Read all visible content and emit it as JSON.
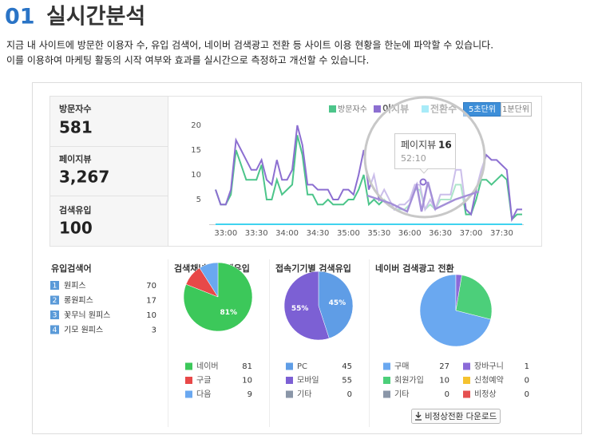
{
  "header": {
    "number": "01",
    "title": "실시간분석",
    "description": [
      "지금 내 사이트에 방문한 이용자 수, 유입 검색어, 네이버 검색광고 전환 등 사이트 이용 현황을 한눈에 파악할 수 있습니다.",
      "이를 이용하여 마케팅 활동의 시작 여부와 효과를 실시간으로 측정하고 개선할 수 있습니다."
    ]
  },
  "stats": [
    {
      "label": "방문자수",
      "value": "581"
    },
    {
      "label": "페이지뷰",
      "value": "3,267"
    },
    {
      "label": "검색유입",
      "value": "100"
    }
  ],
  "interval_buttons": [
    "5초단위",
    "1분단위"
  ],
  "keywords": {
    "title": "유입검색어",
    "rows": [
      {
        "rank": "1",
        "keyword": "원피스",
        "count": "70"
      },
      {
        "rank": "2",
        "keyword": "롱원피스",
        "count": "17"
      },
      {
        "rank": "3",
        "keyword": "꽃무늬 원피스",
        "count": "10"
      },
      {
        "rank": "4",
        "keyword": "기모 원피스",
        "count": "3"
      }
    ]
  },
  "download_button": "비정상전환 다운로드",
  "chart_data": [
    {
      "type": "line",
      "categories": [
        null,
        null,
        "33:00",
        null,
        null,
        null,
        null,
        null,
        "33:30",
        null,
        null,
        null,
        null,
        null,
        "34:00",
        null,
        null,
        null,
        null,
        null,
        "34:30",
        null,
        null,
        null,
        null,
        null,
        "35:00",
        null,
        null,
        null,
        null,
        null,
        "35:30",
        null,
        null,
        null,
        null,
        null,
        "36:00",
        null,
        null,
        null,
        null,
        null,
        "36:30",
        null,
        null,
        null,
        null,
        null,
        "37:00",
        null,
        null,
        null,
        null,
        null,
        "37:30",
        null,
        null,
        null,
        null
      ],
      "series": [
        {
          "name": "방문자수",
          "color": "#4cc58a",
          "values": [
            7,
            4,
            4,
            6,
            15,
            12,
            9,
            9,
            9,
            12,
            5,
            5,
            9,
            6,
            7,
            8,
            18,
            14,
            6,
            6,
            4,
            4,
            5,
            4,
            4,
            4,
            5,
            5,
            7,
            10,
            4,
            5,
            4,
            5,
            4,
            3,
            3,
            3,
            4,
            7,
            7,
            3,
            4,
            3,
            5,
            5,
            5,
            8,
            8,
            2,
            2,
            5,
            9,
            9,
            8,
            9,
            10,
            9,
            1,
            2,
            2
          ]
        },
        {
          "name": "이지뷰",
          "color": "#8c6fd1",
          "values": [
            7,
            4,
            4,
            7,
            17,
            15,
            13,
            11,
            11,
            13,
            9,
            8,
            13,
            9,
            9,
            11,
            20,
            16,
            8,
            8,
            7,
            7,
            7,
            5,
            5,
            7,
            7,
            6,
            10,
            15,
            7,
            10,
            5,
            7,
            5,
            3,
            4,
            4,
            5,
            8,
            8,
            3,
            5,
            3,
            6,
            6,
            6,
            11,
            11,
            3,
            2,
            7,
            11,
            14,
            13,
            13,
            12,
            11,
            1,
            3,
            3
          ]
        },
        {
          "name": "전환수",
          "color": "#3fd3ef",
          "values": [
            0,
            0,
            0,
            0,
            0,
            0,
            0,
            0,
            0,
            0,
            0,
            0,
            0,
            0,
            0,
            0,
            0,
            0,
            0,
            0,
            0,
            0,
            0,
            0,
            0,
            0,
            0,
            0,
            0,
            0,
            0,
            0,
            0,
            0,
            0,
            0,
            0,
            0,
            0,
            0,
            0,
            0,
            0,
            0,
            0,
            0,
            0,
            0,
            0,
            0,
            0,
            0,
            0,
            0,
            0,
            0,
            0,
            0,
            0,
            0,
            0
          ]
        }
      ],
      "ylim": [
        0,
        20
      ],
      "yticks": [
        5,
        10,
        15,
        20
      ],
      "grid": false,
      "tooltip": {
        "series": "페이지뷰",
        "value": 16,
        "time": "52:10"
      }
    },
    {
      "type": "pie",
      "title": "검색채널별 검색유입",
      "direction": "clockwise",
      "categories": [
        "네이버",
        "구글",
        "다음"
      ],
      "values": [
        81,
        10,
        9
      ],
      "value_labels": [
        "81%",
        null,
        null
      ],
      "colors": [
        "#3cc85a",
        "#e84848",
        "#6aa8f0"
      ]
    },
    {
      "type": "pie",
      "title": "접속기기별 검색유입",
      "direction": "clockwise",
      "categories": [
        "PC",
        "모바일",
        "기타"
      ],
      "values": [
        45,
        55,
        0
      ],
      "value_labels": [
        "45%",
        "55%",
        null
      ],
      "colors": [
        "#5f9de6",
        "#7c60d4",
        "#8a96a8"
      ]
    },
    {
      "type": "pie",
      "title": "네이버 검색광고 전환",
      "direction": "counterclockwise",
      "categories": [
        "구매",
        "회원가입",
        "기타",
        "장바구니",
        "신청예약",
        "비정상"
      ],
      "values": [
        27,
        10,
        0,
        1,
        0,
        0
      ],
      "colors": [
        "#6aa8f0",
        "#4ccf7a",
        "#8a96a8",
        "#8b6ad8",
        "#f5c330",
        "#e55050"
      ]
    }
  ]
}
